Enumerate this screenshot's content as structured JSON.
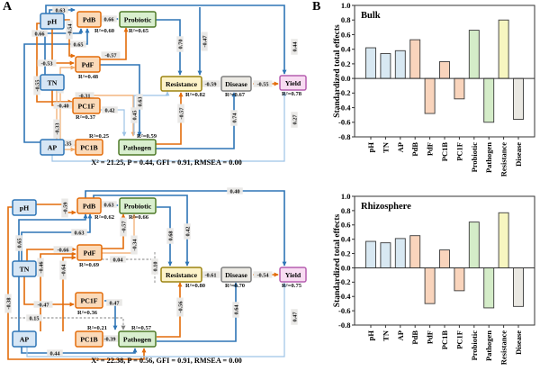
{
  "colors": {
    "edge": {
      "blue": "#2e75b6",
      "light_blue": "#9dc3e6",
      "orange": "#e36c0a",
      "light_orange": "#f0a868",
      "gray": "#808080"
    },
    "chip_bg": "#e9e8e6",
    "node": {
      "soil": {
        "fill": "#d6e6f5",
        "stroke": "#2e75b6"
      },
      "microbe": {
        "fill": "#fbdab9",
        "stroke": "#e36c0a"
      },
      "function": {
        "fill": "#d9efcf",
        "stroke": "#4f7a28"
      },
      "resistance": {
        "fill": "#fdf3c9",
        "stroke": "#9c8412"
      },
      "disease": {
        "fill": "#eceae4",
        "stroke": "#7f7f7f"
      },
      "yield": {
        "fill": "#f8dcf2",
        "stroke": "#b65fb0"
      }
    }
  },
  "panelA": {
    "label": "A",
    "diagrams": [
      {
        "name": "bulk-sem",
        "fit_text": "X² = 21.25, P = 0.44, GFI = 0.91, RMSEA = 0.00",
        "nodes": [
          {
            "id": "pH",
            "label": "pH",
            "group": "soil"
          },
          {
            "id": "TN",
            "label": "TN",
            "group": "soil"
          },
          {
            "id": "AP",
            "label": "AP",
            "group": "soil"
          },
          {
            "id": "PdB",
            "label": "PdB",
            "group": "microbe",
            "r2": "R²=0.60"
          },
          {
            "id": "PdF",
            "label": "PdF",
            "group": "microbe",
            "r2": "R²=0.48"
          },
          {
            "id": "PC1F",
            "label": "PC1F",
            "group": "microbe",
            "r2": "R²=0.37"
          },
          {
            "id": "PC1B",
            "label": "PC1B",
            "group": "microbe",
            "r2": "R²=0.25"
          },
          {
            "id": "Probiotic",
            "label": "Probiotic",
            "group": "function",
            "r2": "R²=0.65"
          },
          {
            "id": "Pathogen",
            "label": "Pathogen",
            "group": "function",
            "r2": "R²=0.59"
          },
          {
            "id": "Resistance",
            "label": "Resistance",
            "group": "resistance",
            "r2": "R²=0.82"
          },
          {
            "id": "Disease",
            "label": "Disease",
            "group": "disease",
            "r2": "R²=0.67"
          },
          {
            "id": "Yield",
            "label": "Yield",
            "group": "yield",
            "r2": "R²=0.78"
          }
        ],
        "edges": [
          {
            "id": "t1",
            "value": "0.63",
            "color": "blue"
          },
          {
            "id": "t2",
            "value": "0.44",
            "color": "blue"
          },
          {
            "id": "t3",
            "value": "0.66",
            "color": "blue"
          },
          {
            "id": "t4",
            "value": "0.65",
            "color": "blue"
          },
          {
            "id": "t5",
            "value": "-0.54",
            "color": "orange"
          },
          {
            "id": "t6",
            "value": "-0.53",
            "color": "orange"
          },
          {
            "id": "t7",
            "value": "-0.55",
            "color": "orange"
          },
          {
            "id": "t8",
            "value": "-0.47",
            "color": "light_orange"
          },
          {
            "id": "t9",
            "value": "-0.40",
            "color": "orange"
          },
          {
            "id": "t10",
            "value": "-0.31",
            "color": "light_orange"
          },
          {
            "id": "t11",
            "value": "0.42",
            "color": "light_blue"
          },
          {
            "id": "t12",
            "value": "0.63",
            "color": "blue"
          },
          {
            "id": "t13",
            "value": "0.45",
            "color": "light_blue"
          },
          {
            "id": "t14",
            "value": "-0.57",
            "color": "orange"
          },
          {
            "id": "t15",
            "value": "0.70",
            "color": "blue"
          },
          {
            "id": "t16",
            "value": "-0.47",
            "color": "blue"
          },
          {
            "id": "t17",
            "value": "-0.59",
            "color": "orange"
          },
          {
            "id": "t18",
            "value": "-0.55",
            "color": "orange"
          },
          {
            "id": "t19",
            "value": "0.74",
            "color": "blue"
          },
          {
            "id": "t20",
            "value": "0.27",
            "color": "light_blue"
          },
          {
            "id": "t21",
            "value": "-0.33",
            "color": "light_orange"
          },
          {
            "id": "t22",
            "value": "0.35",
            "color": "light_orange"
          },
          {
            "id": "t23",
            "value": "-0.57",
            "color": "orange"
          },
          {
            "id": "t24",
            "value": "0.66",
            "color": "blue"
          }
        ]
      },
      {
        "name": "rhizo-sem",
        "fit_text": "X² = 22.38, P = 0.56, GFI = 0.91, RMSEA = 0.00",
        "nodes": [
          {
            "id": "pH",
            "label": "pH",
            "group": "soil"
          },
          {
            "id": "TN",
            "label": "TN",
            "group": "soil"
          },
          {
            "id": "AP",
            "label": "AP",
            "group": "soil"
          },
          {
            "id": "PdB",
            "label": "PdB",
            "group": "microbe",
            "r2": "R²=0.62"
          },
          {
            "id": "PdF",
            "label": "PdF",
            "group": "microbe",
            "r2": "R²=0.69"
          },
          {
            "id": "PC1F",
            "label": "PC1F",
            "group": "microbe",
            "r2": "R²=0.36"
          },
          {
            "id": "PC1B",
            "label": "PC1B",
            "group": "microbe",
            "r2": "R²=0.21"
          },
          {
            "id": "Probiotic",
            "label": "Probiotic",
            "group": "function",
            "r2": "R²=0.66"
          },
          {
            "id": "Pathogen",
            "label": "Pathogen",
            "group": "function",
            "r2": "R²=0.57"
          },
          {
            "id": "Resistance",
            "label": "Resistance",
            "group": "resistance",
            "r2": "R²=0.80"
          },
          {
            "id": "Disease",
            "label": "Disease",
            "group": "disease",
            "r2": "R²=0.70"
          },
          {
            "id": "Yield",
            "label": "Yield",
            "group": "yield",
            "r2": "R²=0.75"
          }
        ],
        "edges": [
          {
            "id": "b1",
            "value": "0.63",
            "color": "blue"
          },
          {
            "id": "b2",
            "value": "-0.59",
            "color": "orange"
          },
          {
            "id": "b3",
            "value": "0.63",
            "color": "blue"
          },
          {
            "id": "b4",
            "value": "0.65",
            "color": "blue"
          },
          {
            "id": "b5",
            "value": "-0.57",
            "color": "orange"
          },
          {
            "id": "b6",
            "value": "-0.66",
            "color": "orange"
          },
          {
            "id": "b7",
            "value": "-0.46",
            "color": "orange"
          },
          {
            "id": "b8",
            "value": "-0.64",
            "color": "orange"
          },
          {
            "id": "b9",
            "value": "0.04",
            "color": "gray"
          },
          {
            "id": "b10",
            "value": "-0.34",
            "color": "light_orange"
          },
          {
            "id": "b11",
            "value": "0.10",
            "color": "gray"
          },
          {
            "id": "b12",
            "value": "0.68",
            "color": "blue"
          },
          {
            "id": "b13",
            "value": "0.42",
            "color": "blue"
          },
          {
            "id": "b14",
            "value": "0.40",
            "color": "blue"
          },
          {
            "id": "b15",
            "value": "-0.61",
            "color": "orange"
          },
          {
            "id": "b16",
            "value": "-0.54",
            "color": "orange"
          },
          {
            "id": "b17",
            "value": "-0.47",
            "color": "orange"
          },
          {
            "id": "b18",
            "value": "0.47",
            "color": "blue"
          },
          {
            "id": "b19",
            "value": "0.15",
            "color": "gray"
          },
          {
            "id": "b20",
            "value": "-0.38",
            "color": "orange"
          },
          {
            "id": "b21",
            "value": "0.44",
            "color": "blue"
          },
          {
            "id": "b22",
            "value": "-0.39",
            "color": "orange"
          },
          {
            "id": "b23",
            "value": "-0.56",
            "color": "orange"
          },
          {
            "id": "b24",
            "value": "0.64",
            "color": "blue"
          },
          {
            "id": "b25",
            "value": "0.47",
            "color": "light_blue"
          }
        ]
      }
    ]
  },
  "panelB": {
    "label": "B"
  },
  "chart_data": [
    {
      "type": "bar",
      "title": "Bulk",
      "ylabel": "Standardized total effects",
      "xlabel": "",
      "categories": [
        "pH",
        "TN",
        "AP",
        "PdB",
        "PdF",
        "PC1B",
        "PC1F",
        "Probiotic",
        "Pathogen",
        "Resistance",
        "Disease"
      ],
      "values": [
        0.42,
        0.34,
        0.38,
        0.53,
        -0.48,
        0.23,
        -0.28,
        0.66,
        -0.6,
        0.8,
        -0.56
      ],
      "ylim": [
        -0.8,
        1.0
      ],
      "yticks": [
        1.0,
        0.8,
        0.6,
        0.4,
        0.2,
        0.0,
        -0.2,
        -0.4,
        -0.6,
        -0.8
      ],
      "grid": false,
      "legend": null,
      "bar_colors": [
        "#d8e8f2",
        "#d8e8f2",
        "#d8e8f2",
        "#f9d4bc",
        "#f9d4bc",
        "#f9d4bc",
        "#f9d4bc",
        "#d4ecc8",
        "#d4ecc8",
        "#f7f6c0",
        "#eae8e2"
      ]
    },
    {
      "type": "bar",
      "title": "Rhizosphere",
      "ylabel": "Standardized total effects",
      "xlabel": "",
      "categories": [
        "pH",
        "TN",
        "AP",
        "PdB",
        "PdF",
        "PC1B",
        "PC1F",
        "Probiotic",
        "Pathogen",
        "Resistance",
        "Disease"
      ],
      "values": [
        0.37,
        0.35,
        0.41,
        0.45,
        -0.5,
        0.25,
        -0.32,
        0.64,
        -0.56,
        0.77,
        -0.54
      ],
      "ylim": [
        -0.8,
        1.0
      ],
      "yticks": [
        1.0,
        0.8,
        0.6,
        0.4,
        0.2,
        0.0,
        -0.2,
        -0.4,
        -0.6,
        -0.8
      ],
      "grid": false,
      "legend": null,
      "bar_colors": [
        "#d8e8f2",
        "#d8e8f2",
        "#d8e8f2",
        "#f9d4bc",
        "#f9d4bc",
        "#f9d4bc",
        "#f9d4bc",
        "#d4ecc8",
        "#d4ecc8",
        "#f7f6c0",
        "#eae8e2"
      ]
    }
  ]
}
